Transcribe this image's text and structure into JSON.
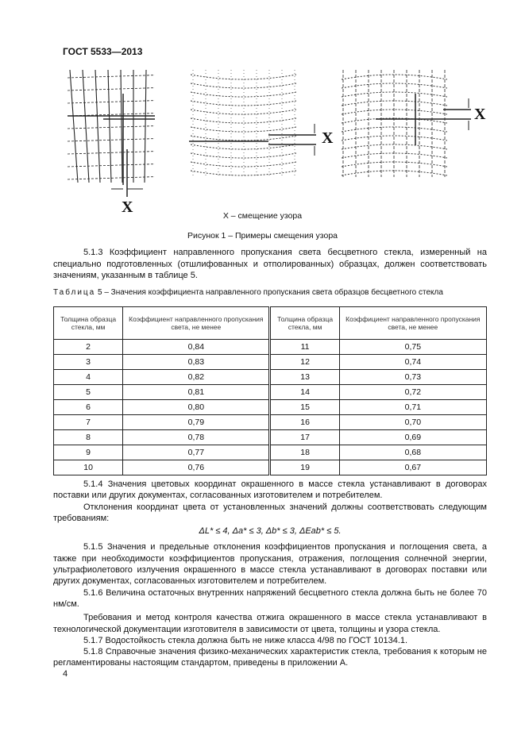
{
  "header": "ГОСТ 5533—2013",
  "figure": {
    "marker": "X",
    "legend": "X – смещение узора",
    "caption": "Рисунок 1 – Примеры смещения узора"
  },
  "p513": "5.1.3 Коэффициент направленного пропускания света бесцветного стекла, измеренный на специально подготовленных (отшлифованных и отполированных) образцах, должен соответствовать значениям, указанным в таблице 5.",
  "table": {
    "label": "Таблица",
    "title": " 5 – Значения коэффициента направленного пропускания света образцов бесцветного стекла",
    "headers": [
      "Толщина образца стекла, мм",
      "Коэффициент направленного пропускания света, не менее",
      "Толщина образца стекла, мм",
      "Коэффициент направленного пропускания света, не менее"
    ],
    "rows": [
      [
        "2",
        "0,84",
        "11",
        "0,75"
      ],
      [
        "3",
        "0,83",
        "12",
        "0,74"
      ],
      [
        "4",
        "0,82",
        "13",
        "0,73"
      ],
      [
        "5",
        "0,81",
        "14",
        "0,72"
      ],
      [
        "6",
        "0,80",
        "15",
        "0,71"
      ],
      [
        "7",
        "0,79",
        "16",
        "0,70"
      ],
      [
        "8",
        "0,78",
        "17",
        "0,69"
      ],
      [
        "9",
        "0,77",
        "18",
        "0,68"
      ],
      [
        "10",
        "0,76",
        "19",
        "0,67"
      ]
    ]
  },
  "p514": "5.1.4 Значения цветовых координат окрашенного в массе стекла устанавливают в договорах поставки или других документах, согласованных изготовителем и потребителем.",
  "p514b": "Отклонения координат цвета от установленных значений должны соответствовать следующим требованиям:",
  "formula": "ΔL* ≤ 4, Δa* ≤ 3, Δb* ≤ 3, ΔEab* ≤ 5.",
  "p515": "5.1.5 Значения и предельные отклонения коэффициентов пропускания и поглощения света, а также при необходимости коэффициентов пропускания, отражения, поглощения солнечной энергии, ультрафиолетового излучения окрашенного в массе стекла устанавливают в договорах поставки или других документах, согласованных изготовителем и потребителем.",
  "p516": "5.1.6 Величина остаточных внутренних напряжений бесцветного стекла должна быть не более 70 нм/см.",
  "p516b": "Требования и метод контроля качества отжига окрашенного в массе стекла устанавливают в технологической документации изготовителя в зависимости от цвета, толщины и узора стекла.",
  "p517": "5.1.7 Водостойкость стекла должна быть не ниже класса 4/98 по ГОСТ 10134.1.",
  "p518": "5.1.8 Справочные значения физико-механических характеристик стекла, требования к которым не регламентированы настоящим стандартом, приведены в приложении А.",
  "page_number": "4"
}
